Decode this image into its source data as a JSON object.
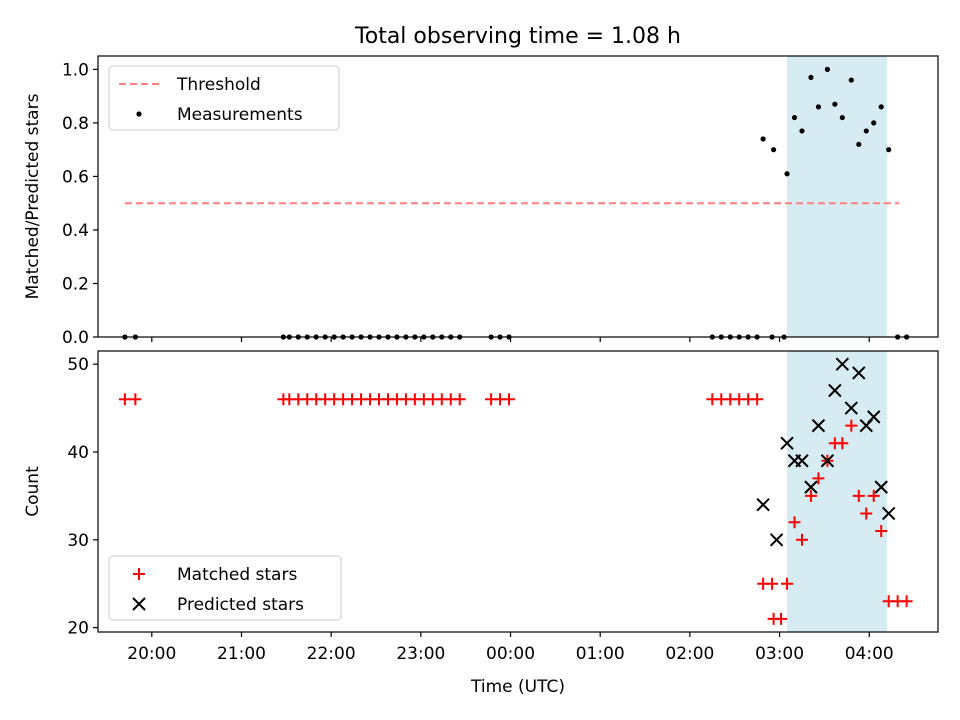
{
  "figure": {
    "title": "Total observing time = 1.08 h"
  },
  "chart_data": [
    {
      "type": "scatter",
      "title": "Total observing time = 1.08 h",
      "xlabel": "",
      "ylabel": "Matched/Predicted stars",
      "xlim": [
        "19:24",
        "04:46"
      ],
      "ylim": [
        0,
        1.05
      ],
      "yticks": [
        "0.0",
        "0.2",
        "0.4",
        "0.6",
        "0.8",
        "1.0"
      ],
      "xticks": [
        "20:00",
        "21:00",
        "22:00",
        "23:00",
        "00:00",
        "01:00",
        "02:00",
        "03:00",
        "04:00"
      ],
      "tick_labels_visible_x": false,
      "shaded_region": {
        "x0": "03:05",
        "x1": "04:12",
        "color": "#add8e6"
      },
      "legend": {
        "placement": "top-left",
        "entries": [
          "Threshold",
          "Measurements"
        ]
      },
      "series": [
        {
          "name": "Threshold",
          "style": "dashed line",
          "color": "#ff7f7f",
          "points": [
            [
              "19:42",
              0.5
            ],
            [
              "04:20",
              0.5
            ]
          ]
        },
        {
          "name": "Measurements",
          "style": "dot",
          "color": "#000000",
          "points": [
            [
              "19:42",
              0.0
            ],
            [
              "19:49",
              0.0
            ],
            [
              "21:28",
              0.0
            ],
            [
              "21:32",
              0.0
            ],
            [
              "21:38",
              0.0
            ],
            [
              "21:44",
              0.0
            ],
            [
              "21:50",
              0.0
            ],
            [
              "21:56",
              0.0
            ],
            [
              "22:02",
              0.0
            ],
            [
              "22:08",
              0.0
            ],
            [
              "22:14",
              0.0
            ],
            [
              "22:20",
              0.0
            ],
            [
              "22:26",
              0.0
            ],
            [
              "22:32",
              0.0
            ],
            [
              "22:38",
              0.0
            ],
            [
              "22:44",
              0.0
            ],
            [
              "22:50",
              0.0
            ],
            [
              "22:56",
              0.0
            ],
            [
              "23:02",
              0.0
            ],
            [
              "23:08",
              0.0
            ],
            [
              "23:14",
              0.0
            ],
            [
              "23:20",
              0.0
            ],
            [
              "23:26",
              0.0
            ],
            [
              "23:47",
              0.0
            ],
            [
              "23:53",
              0.0
            ],
            [
              "23:59",
              0.0
            ],
            [
              "02:15",
              0.0
            ],
            [
              "02:21",
              0.0
            ],
            [
              "02:27",
              0.0
            ],
            [
              "02:33",
              0.0
            ],
            [
              "02:39",
              0.0
            ],
            [
              "02:45",
              0.0
            ],
            [
              "02:49",
              0.74
            ],
            [
              "02:55",
              0.0
            ],
            [
              "02:56",
              0.7
            ],
            [
              "03:03",
              0.0
            ],
            [
              "03:05",
              0.61
            ],
            [
              "03:10",
              0.82
            ],
            [
              "03:15",
              0.77
            ],
            [
              "03:21",
              0.97
            ],
            [
              "03:26",
              0.86
            ],
            [
              "03:32",
              1.0
            ],
            [
              "03:37",
              0.87
            ],
            [
              "03:42",
              0.82
            ],
            [
              "03:48",
              0.96
            ],
            [
              "03:53",
              0.72
            ],
            [
              "03:58",
              0.77
            ],
            [
              "04:03",
              0.8
            ],
            [
              "04:08",
              0.86
            ],
            [
              "04:13",
              0.7
            ],
            [
              "04:19",
              0.0
            ],
            [
              "04:25",
              0.0
            ]
          ]
        }
      ]
    },
    {
      "type": "scatter",
      "title": "",
      "xlabel": "Time (UTC)",
      "ylabel": "Count",
      "xlim": [
        "19:24",
        "04:46"
      ],
      "ylim": [
        19.5,
        51.5
      ],
      "yticks": [
        "20",
        "30",
        "40",
        "50"
      ],
      "xticks": [
        "20:00",
        "21:00",
        "22:00",
        "23:00",
        "00:00",
        "01:00",
        "02:00",
        "03:00",
        "04:00"
      ],
      "tick_labels_visible_x": true,
      "shaded_region": {
        "x0": "03:05",
        "x1": "04:12",
        "color": "#add8e6"
      },
      "legend": {
        "placement": "bottom-left",
        "entries": [
          "Matched stars",
          "Predicted stars"
        ]
      },
      "series": [
        {
          "name": "Matched stars",
          "marker": "+",
          "color": "#ff0000",
          "points": [
            [
              "19:42",
              46
            ],
            [
              "19:49",
              46
            ],
            [
              "21:28",
              46
            ],
            [
              "21:32",
              46
            ],
            [
              "21:38",
              46
            ],
            [
              "21:44",
              46
            ],
            [
              "21:50",
              46
            ],
            [
              "21:56",
              46
            ],
            [
              "22:02",
              46
            ],
            [
              "22:08",
              46
            ],
            [
              "22:14",
              46
            ],
            [
              "22:20",
              46
            ],
            [
              "22:26",
              46
            ],
            [
              "22:32",
              46
            ],
            [
              "22:38",
              46
            ],
            [
              "22:44",
              46
            ],
            [
              "22:50",
              46
            ],
            [
              "22:56",
              46
            ],
            [
              "23:02",
              46
            ],
            [
              "23:08",
              46
            ],
            [
              "23:14",
              46
            ],
            [
              "23:20",
              46
            ],
            [
              "23:26",
              46
            ],
            [
              "23:47",
              46
            ],
            [
              "23:53",
              46
            ],
            [
              "23:59",
              46
            ],
            [
              "02:15",
              46
            ],
            [
              "02:21",
              46
            ],
            [
              "02:27",
              46
            ],
            [
              "02:33",
              46
            ],
            [
              "02:39",
              46
            ],
            [
              "02:45",
              46
            ],
            [
              "02:49",
              25
            ],
            [
              "02:55",
              25
            ],
            [
              "02:56",
              21
            ],
            [
              "03:01",
              21
            ],
            [
              "03:05",
              25
            ],
            [
              "03:10",
              32
            ],
            [
              "03:15",
              30
            ],
            [
              "03:21",
              35
            ],
            [
              "03:26",
              37
            ],
            [
              "03:32",
              39
            ],
            [
              "03:37",
              41
            ],
            [
              "03:42",
              41
            ],
            [
              "03:48",
              43
            ],
            [
              "03:53",
              35
            ],
            [
              "03:58",
              33
            ],
            [
              "04:03",
              35
            ],
            [
              "04:08",
              31
            ],
            [
              "04:13",
              23
            ],
            [
              "04:19",
              23
            ],
            [
              "04:25",
              23
            ]
          ]
        },
        {
          "name": "Predicted stars",
          "marker": "x",
          "color": "#000000",
          "points": [
            [
              "02:49",
              34
            ],
            [
              "02:58",
              30
            ],
            [
              "03:05",
              41
            ],
            [
              "03:10",
              39
            ],
            [
              "03:15",
              39
            ],
            [
              "03:21",
              36
            ],
            [
              "03:26",
              43
            ],
            [
              "03:32",
              39
            ],
            [
              "03:37",
              47
            ],
            [
              "03:42",
              50
            ],
            [
              "03:48",
              45
            ],
            [
              "03:53",
              49
            ],
            [
              "03:58",
              43
            ],
            [
              "04:03",
              44
            ],
            [
              "04:08",
              36
            ],
            [
              "04:13",
              33
            ]
          ]
        }
      ]
    }
  ]
}
